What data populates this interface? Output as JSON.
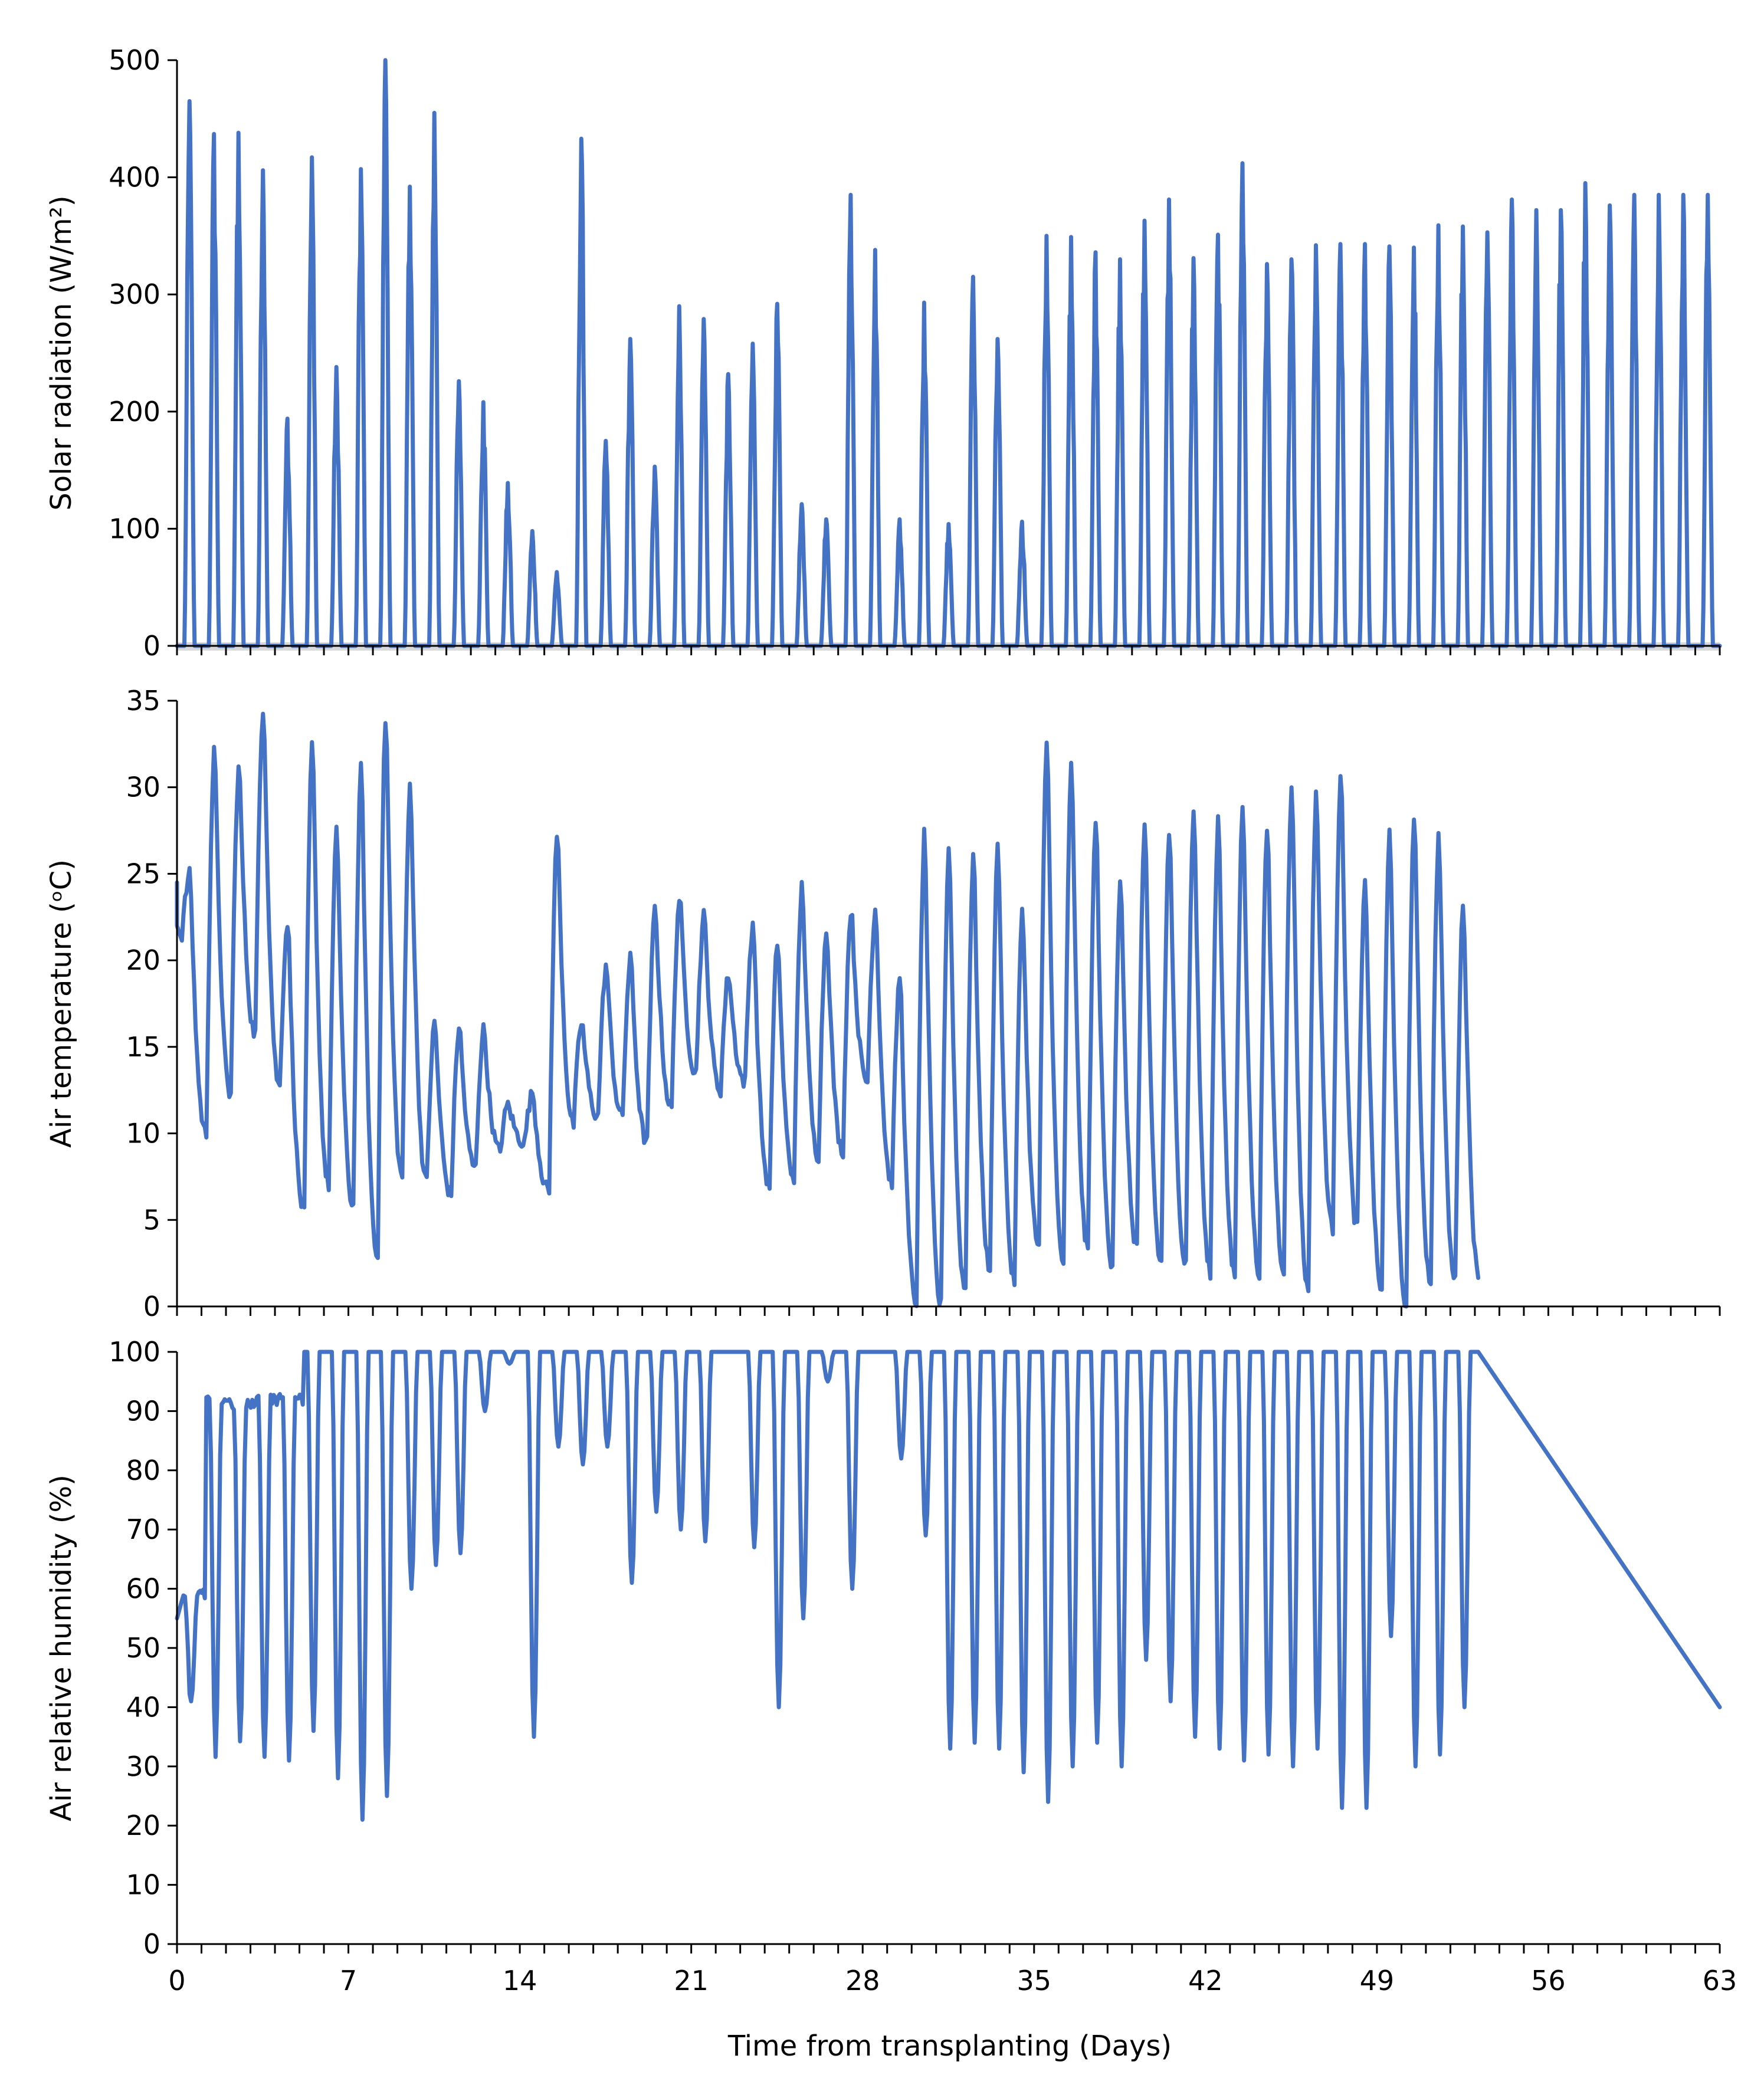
{
  "figure": {
    "xlabel": "Time from transplanting (Days)",
    "x_ticks": [
      "0",
      "7",
      "14",
      "21",
      "28",
      "35",
      "42",
      "49",
      "56",
      "63"
    ],
    "line_color": "#4472C4",
    "axis_color": "#000000",
    "zero_band_color": "#D9D9D9"
  },
  "chart_data": [
    {
      "type": "line",
      "ylabel": "Solar radiation (W/m²)",
      "xlim": [
        0,
        63
      ],
      "ylim": [
        0,
        500
      ],
      "y_ticks": [
        "0",
        "100",
        "200",
        "300",
        "400",
        "500"
      ],
      "grid": false,
      "series": [
        {
          "peak_days": [
            0.0,
            1.0,
            2.0,
            3.0,
            4.0,
            5.0,
            6.0,
            7.0,
            8.0,
            9.0,
            10.0,
            11.0,
            12.0,
            13.0,
            14.0,
            15.0,
            16.0,
            17.0,
            18.0,
            19.0,
            20.0,
            21.0,
            22.0,
            23.0,
            24.0,
            25.0,
            26.0,
            27.0,
            28.0,
            29.0,
            30.0,
            31.0,
            32.0,
            33.0,
            34.0,
            35.0,
            36.0,
            37.0,
            38.0,
            39.0,
            40.0,
            41.0,
            42.0,
            43.0,
            44.0,
            45.0,
            46.0,
            47.0,
            48.0,
            49.0,
            50.0,
            51.0,
            52.0,
            53.0,
            54.0,
            55.0,
            56.0,
            57.0,
            58.0,
            59.0,
            60.0,
            61.0,
            62.0
          ],
          "peak_values": [
            465,
            437,
            438,
            406,
            194,
            417,
            238,
            407,
            500,
            392,
            455,
            226,
            208,
            139,
            98,
            63,
            433,
            175,
            262,
            153,
            290,
            279,
            232,
            258,
            292,
            121,
            108,
            385,
            338,
            108,
            293,
            104,
            315,
            262,
            106,
            350,
            349,
            336,
            330,
            363,
            381,
            331,
            351,
            412,
            326,
            330,
            342,
            343,
            343,
            341,
            340,
            359,
            358,
            353,
            381,
            372,
            372,
            395,
            376,
            385,
            385,
            385,
            385
          ]
        }
      ]
    },
    {
      "type": "line",
      "ylabel": "Air temperature (ᵒC)",
      "xlim": [
        0,
        63
      ],
      "ylim": [
        0,
        35
      ],
      "y_ticks": [
        "0",
        "5",
        "10",
        "15",
        "20",
        "25",
        "30",
        "35"
      ],
      "grid": false,
      "series": [
        {
          "daily_max": [
            25.0,
            32.3,
            31.4,
            34.9,
            22.4,
            32.8,
            27.7,
            31.4,
            34.4,
            30.4,
            16.5,
            16.3,
            16.1,
            11.7,
            12.4,
            27.6,
            16.5,
            19.8,
            20.2,
            23.2,
            23.8,
            22.7,
            19.3,
            22.3,
            21.3,
            24.5,
            22.0,
            23.1,
            23.1,
            19.3,
            27.6,
            26.9,
            26.4,
            26.9,
            23.3,
            33.1,
            31.6,
            28.4,
            24.7,
            27.8,
            27.7,
            29.0,
            28.6,
            29.3,
            28.0,
            30.5,
            30.1,
            31.2,
            24.8,
            27.8,
            28.8,
            27.6,
            23.6
          ],
          "daily_min": [
            21.5,
            10.0,
            12.2,
            15.8,
            12.7,
            5.5,
            7.0,
            5.8,
            2.8,
            7.5,
            7.2,
            6.5,
            8.0,
            9.0,
            9.5,
            6.7,
            10.5,
            11.0,
            11.0,
            9.5,
            11.5,
            13.5,
            12.5,
            13.0,
            7.0,
            7.5,
            8.7,
            9.0,
            13.0,
            7.2,
            0.3,
            0.1,
            1.0,
            2.3,
            1.5,
            3.5,
            2.5,
            3.3,
            2.5,
            3.5,
            2.5,
            2.5,
            2.0,
            1.8,
            2.0,
            2.2,
            1.0,
            4.5,
            4.5,
            1.0,
            0.0,
            1.5,
            1.5
          ]
        }
      ]
    },
    {
      "type": "line",
      "ylabel": "Air relative humidity (%)",
      "xlim": [
        0,
        63
      ],
      "ylim": [
        0,
        100
      ],
      "y_ticks": [
        "0",
        "10",
        "20",
        "30",
        "40",
        "50",
        "60",
        "70",
        "80",
        "90",
        "100"
      ],
      "grid": false,
      "series": [
        {
          "daily_min": [
            41,
            32,
            34,
            32,
            31,
            36,
            28,
            21,
            25,
            60,
            64,
            66,
            90,
            98,
            35,
            84,
            81,
            84,
            61,
            73,
            70,
            68,
            100,
            67,
            40,
            55,
            95,
            60,
            100,
            82,
            69,
            33,
            34,
            33,
            29,
            24,
            30,
            34,
            30,
            48,
            41,
            35,
            33,
            31,
            32,
            30,
            33,
            23,
            23,
            52,
            30,
            32,
            40
          ],
          "daily_max": [
            59,
            92,
            91,
            92,
            92,
            100,
            100,
            100,
            100,
            100,
            100,
            100,
            100,
            100,
            100,
            100,
            100,
            100,
            100,
            100,
            100,
            100,
            100,
            100,
            100,
            100,
            100,
            100,
            100,
            100,
            100,
            100,
            100,
            100,
            100,
            100,
            100,
            100,
            100,
            100,
            100,
            100,
            100,
            100,
            100,
            100,
            100,
            100,
            100,
            100,
            100,
            100,
            100
          ]
        }
      ]
    }
  ]
}
